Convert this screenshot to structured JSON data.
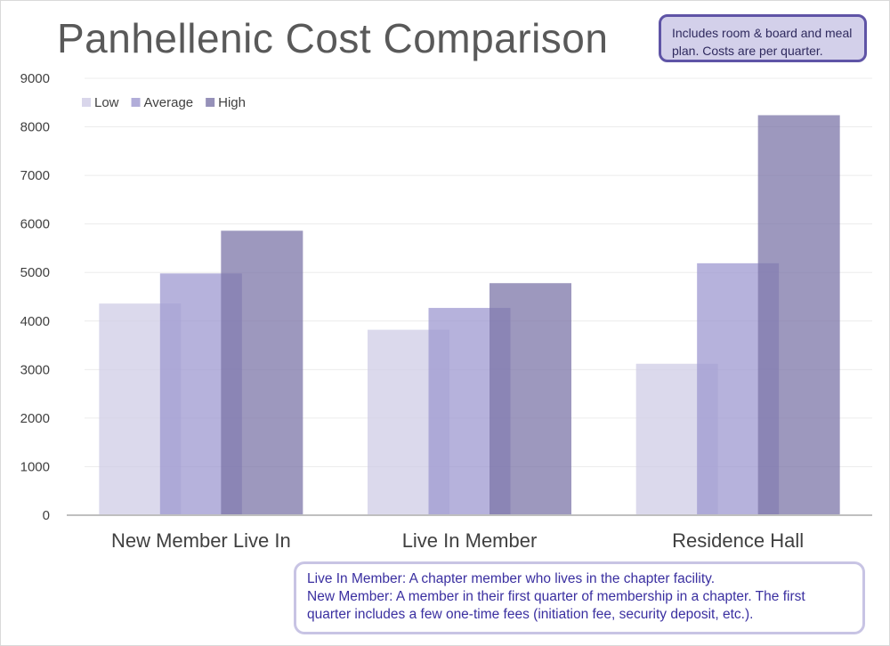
{
  "chart_data": {
    "type": "bar",
    "title": "Panhellenic Cost Comparison",
    "categories": [
      "New Member Live In",
      "Live In Member",
      "Residence Hall"
    ],
    "series": [
      {
        "name": "Low",
        "values": [
          4360,
          3820,
          3120
        ],
        "color": "#cfcce6"
      },
      {
        "name": "Average",
        "values": [
          4980,
          4270,
          5190
        ],
        "color": "#9e98d0"
      },
      {
        "name": "High",
        "values": [
          5860,
          4780,
          8240
        ],
        "color": "#7c75a8"
      }
    ],
    "ylim": [
      0,
      9000
    ],
    "yticks": [
      "0",
      "1000",
      "2000",
      "3000",
      "4000",
      "5000",
      "6000",
      "7000",
      "8000",
      "9000"
    ],
    "xlabel": "",
    "ylabel": "",
    "legend_position": "top-left",
    "grid": true
  },
  "notes": {
    "top": "Includes room & board and meal plan. Costs are per quarter.",
    "bottom_line1": "Live In Member: A chapter member who lives in the chapter facility.",
    "bottom_line2": "New Member: A member in their first quarter of membership in a chapter. The first quarter includes a few one-time fees (initiation fee, security deposit, etc.)."
  }
}
